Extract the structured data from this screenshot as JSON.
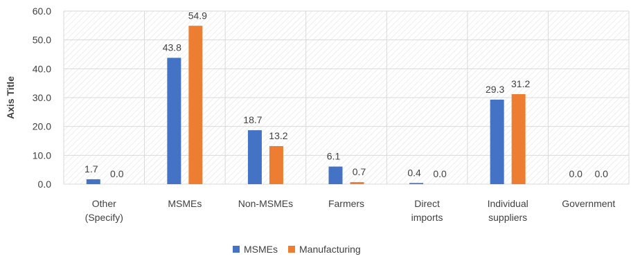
{
  "chart_data": {
    "type": "bar",
    "ylabel": "Axis Title",
    "ylim": [
      0,
      60
    ],
    "yticks": [
      "0.0",
      "10.0",
      "20.0",
      "30.0",
      "40.0",
      "50.0",
      "60.0"
    ],
    "categories": [
      [
        "Other",
        "(Specify)"
      ],
      [
        "MSMEs"
      ],
      [
        "Non-MSMEs"
      ],
      [
        "Farmers"
      ],
      [
        "Direct",
        "imports"
      ],
      [
        "Individual",
        "suppliers"
      ],
      [
        "Government"
      ]
    ],
    "series": [
      {
        "name": "MSMEs",
        "color": "#4472C4",
        "values": [
          1.7,
          43.8,
          18.7,
          6.1,
          0.4,
          29.3,
          0.0
        ],
        "labels": [
          "1.7",
          "43.8",
          "18.7",
          "6.1",
          "0.4",
          "29.3",
          "0.0"
        ]
      },
      {
        "name": "Manufacturing",
        "color": "#ED7D31",
        "values": [
          0.0,
          54.9,
          13.2,
          0.7,
          0.0,
          31.2,
          0.0
        ],
        "labels": [
          "0.0",
          "54.9",
          "13.2",
          "0.7",
          "0.0",
          "31.2",
          "0.0"
        ]
      }
    ],
    "grid": true,
    "legend": "bottom-center"
  }
}
